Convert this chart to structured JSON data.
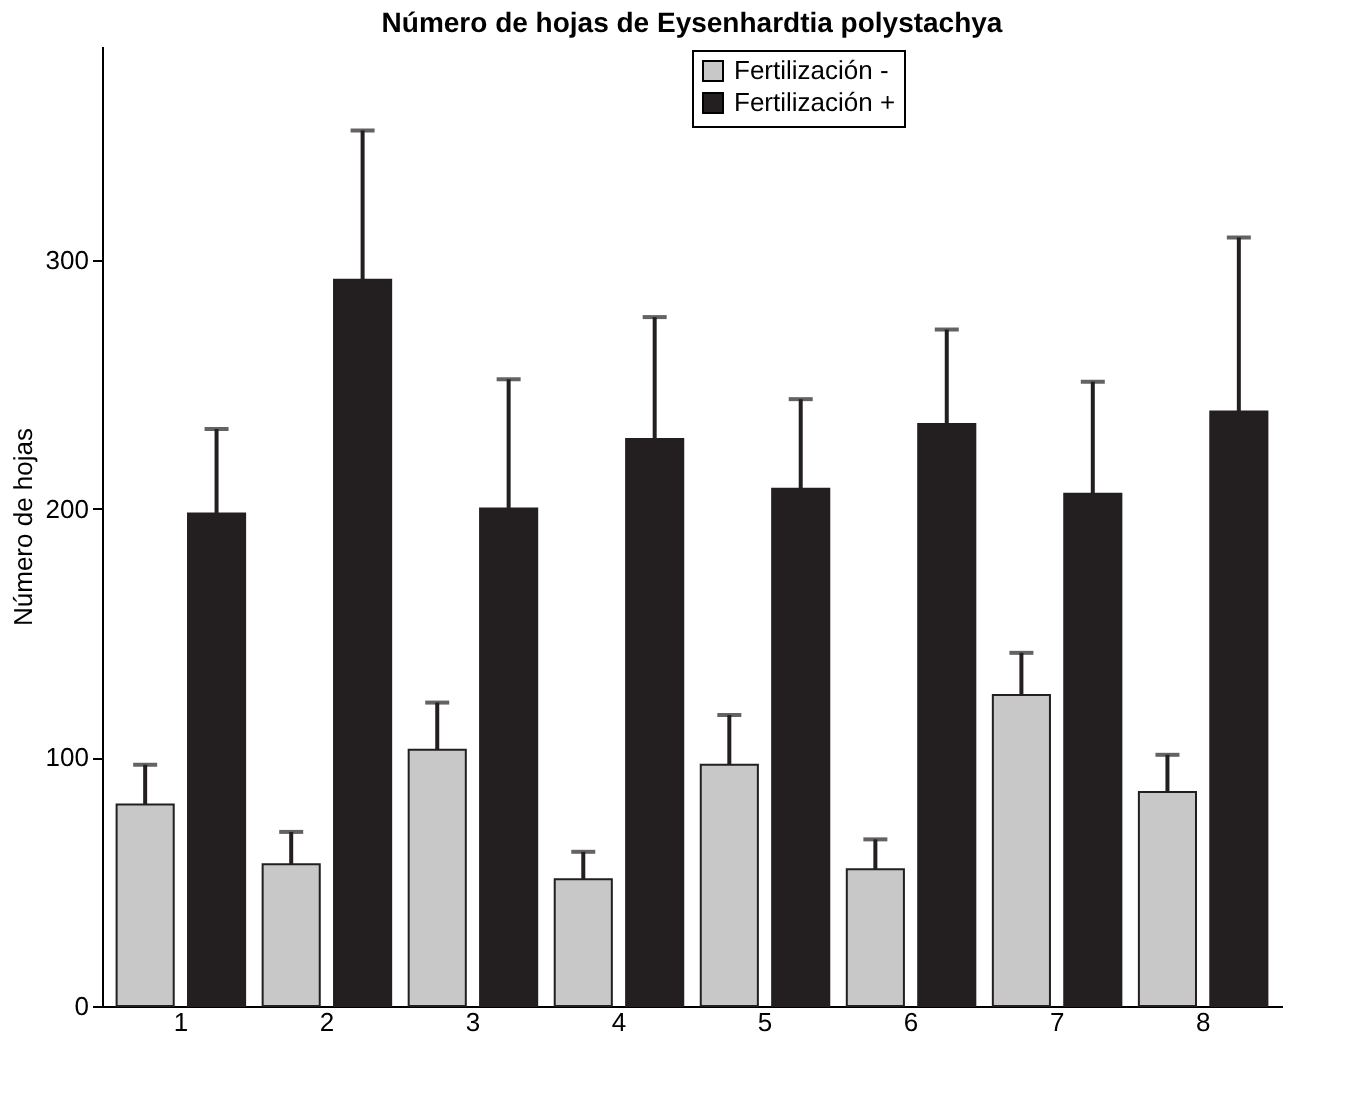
{
  "chart_data": {
    "type": "bar",
    "title": "Número de hojas de Eysenhardtia polystachya",
    "ylabel": "Número de hojas",
    "categories": [
      "1",
      "2",
      "3",
      "4",
      "5",
      "6",
      "7",
      "8"
    ],
    "series": [
      {
        "name": "Fertilización -",
        "color": "#c8c8c8",
        "values": [
          81,
          57,
          103,
          51,
          97,
          55,
          125,
          86
        ],
        "errors": [
          [
            81,
            97
          ],
          [
            57,
            70
          ],
          [
            103,
            122
          ],
          [
            51,
            62
          ],
          [
            97,
            117
          ],
          [
            55,
            67
          ],
          [
            125,
            142
          ],
          [
            86,
            101
          ]
        ]
      },
      {
        "name": "Fertilización +",
        "color": "#231f20",
        "values": [
          198,
          292,
          200,
          228,
          208,
          234,
          206,
          239
        ],
        "errors": [
          [
            198,
            232
          ],
          [
            292,
            352
          ],
          [
            200,
            252
          ],
          [
            228,
            277
          ],
          [
            208,
            244
          ],
          [
            234,
            272
          ],
          [
            206,
            251
          ],
          [
            239,
            309
          ]
        ]
      }
    ],
    "ylim": [
      0,
      386
    ],
    "yticks": [
      0,
      100,
      200,
      300
    ],
    "grid": false,
    "legend": "top"
  }
}
